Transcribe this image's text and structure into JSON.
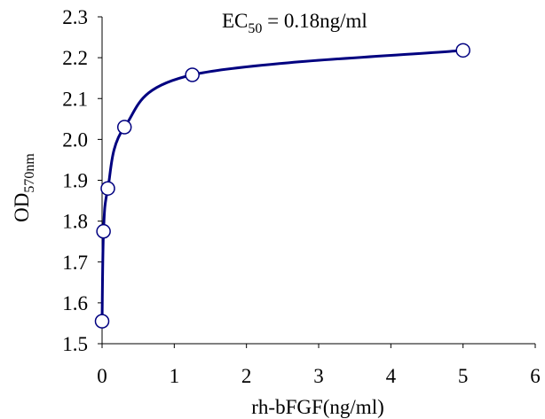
{
  "chart_data": {
    "type": "line",
    "title": "",
    "xlabel": "rh-bFGF(ng/ml)",
    "ylabel": {
      "main": "OD",
      "subscript": "570nm"
    },
    "annotation": {
      "prefix": "EC",
      "subscript": "50",
      "suffix": " = 0.18ng/ml"
    },
    "xlim": [
      0,
      6
    ],
    "ylim": [
      1.5,
      2.3
    ],
    "x_ticks": [
      "0",
      "1",
      "2",
      "3",
      "4",
      "5",
      "6"
    ],
    "y_ticks": [
      "1.5",
      "1.6",
      "1.7",
      "1.8",
      "1.9",
      "2.0",
      "2.1",
      "2.2",
      "2.3"
    ],
    "grid": false,
    "legend": "none",
    "line_color": "#000080",
    "series": [
      {
        "x": [
          0,
          0.02,
          0.08,
          0.31,
          1.25,
          5
        ],
        "y": [
          1.555,
          1.775,
          1.88,
          2.03,
          2.158,
          2.218
        ]
      }
    ]
  }
}
